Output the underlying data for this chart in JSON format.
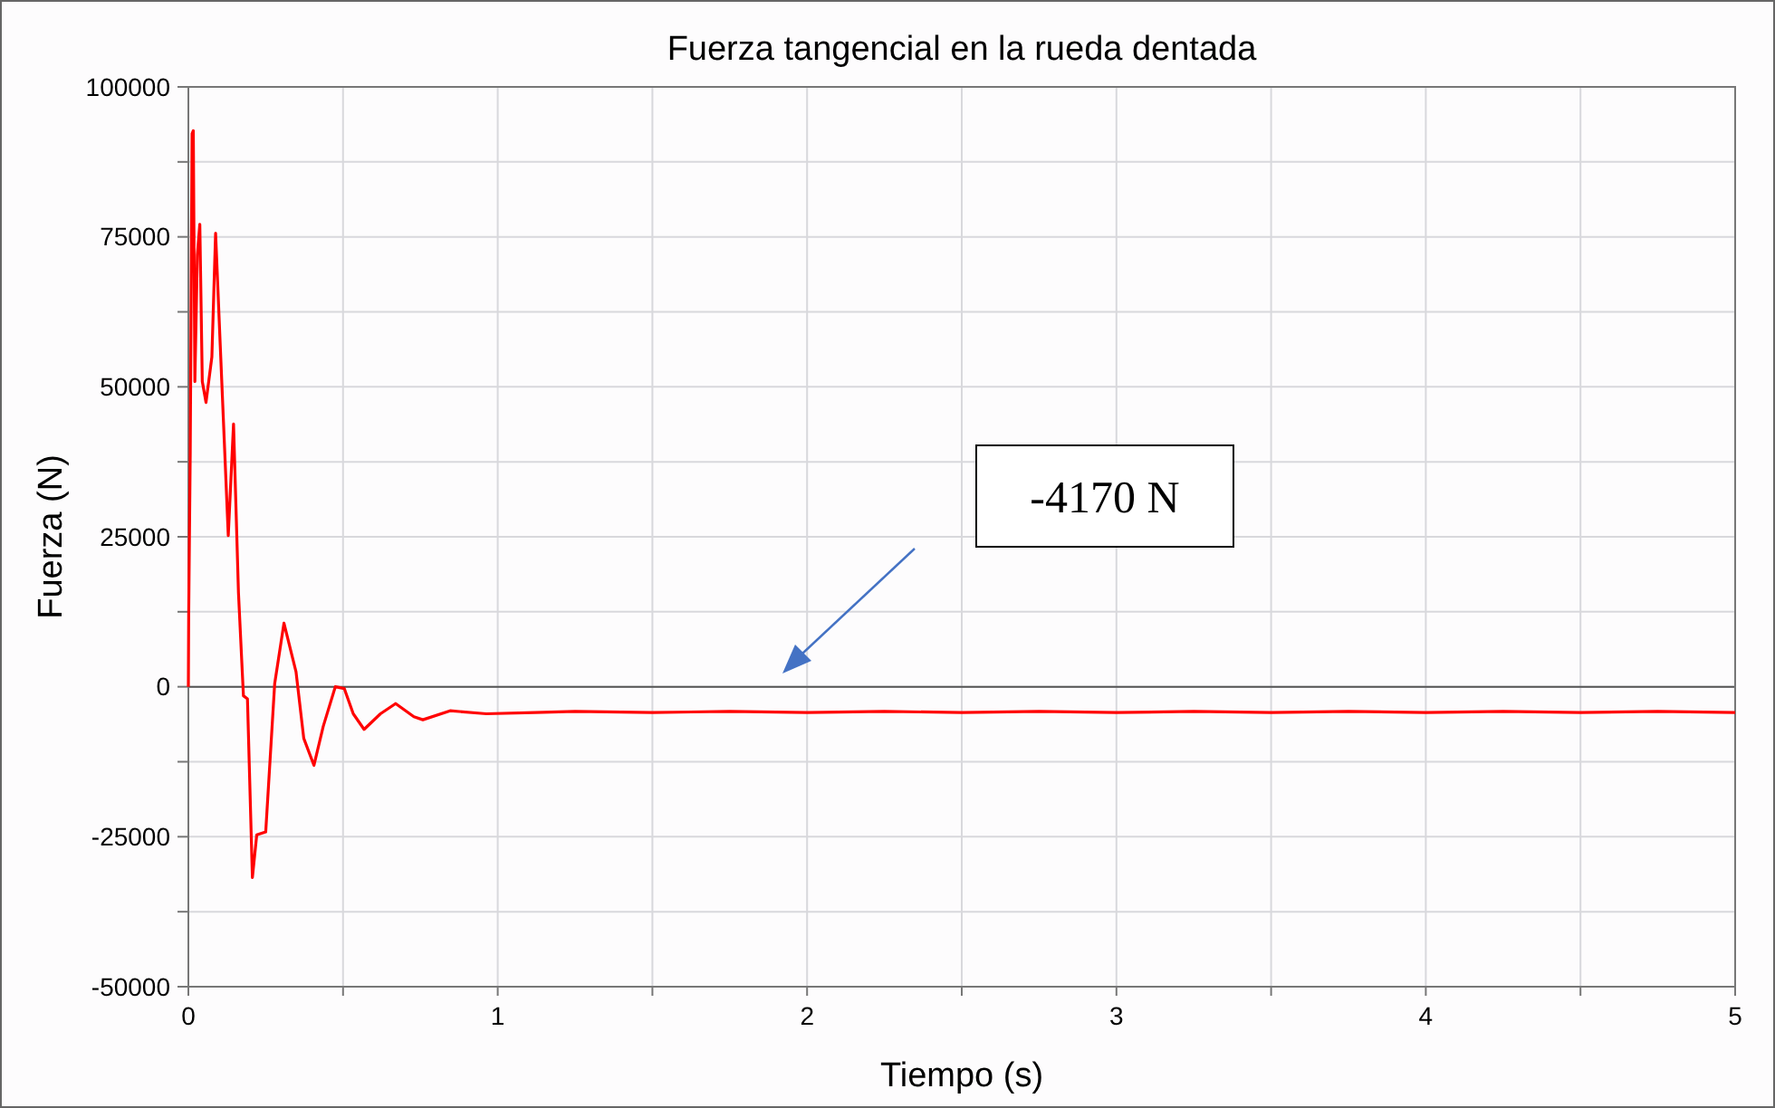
{
  "chart_data": {
    "type": "line",
    "title": "Fuerza tangencial en la rueda dentada",
    "xlabel": "Tiempo (s)",
    "ylabel": "Fuerza (N)",
    "xlim": [
      0,
      5
    ],
    "ylim": [
      -50000,
      100000
    ],
    "xticks": [
      0,
      {
        "value": 0.5,
        "label": null
      },
      1,
      {
        "value": 1.5,
        "label": null
      },
      2,
      {
        "value": 2.5,
        "label": null
      },
      3,
      {
        "value": 3.5,
        "label": null
      },
      4,
      {
        "value": 4.5,
        "label": null
      },
      5
    ],
    "yticks": [
      -50000,
      {
        "value": -37500,
        "label": null
      },
      -25000,
      {
        "value": -12500,
        "label": null
      },
      0,
      {
        "value": 12500,
        "label": null
      },
      25000,
      {
        "value": 37500,
        "label": null
      },
      50000,
      {
        "value": 62500,
        "label": null
      },
      75000,
      {
        "value": 87500,
        "label": null
      },
      100000
    ],
    "grid": true,
    "marker": "none",
    "line_style": "solid",
    "ref_lines": [
      {
        "axis": "y",
        "value": 0,
        "color": "#555555"
      }
    ],
    "annotations": [
      "-4170 N"
    ],
    "series": [
      {
        "color": "#ff0000",
        "x": [
          0,
          0.001,
          0.006,
          0.012,
          0.016,
          0.021,
          0.029,
          0.037,
          0.045,
          0.057,
          0.076,
          0.088,
          0.103,
          0.129,
          0.146,
          0.162,
          0.178,
          0.191,
          0.207,
          0.221,
          0.25,
          0.279,
          0.309,
          0.348,
          0.373,
          0.406,
          0.436,
          0.475,
          0.504,
          0.533,
          0.568,
          0.621,
          0.67,
          0.729,
          0.758,
          0.846,
          0.963,
          1.12,
          1.25,
          1.5,
          1.75,
          2,
          2.25,
          2.5,
          2.75,
          3,
          3.25,
          3.5,
          3.75,
          4,
          4.25,
          4.5,
          4.75,
          5
        ],
        "values": [
          0,
          11600,
          38800,
          92200,
          92700,
          50900,
          72000,
          77100,
          50900,
          47400,
          55000,
          75600,
          57000,
          25200,
          43800,
          15600,
          -1500,
          -2000,
          -31800,
          -24700,
          -24200,
          500,
          10600,
          2500,
          -8600,
          -13100,
          -6600,
          0,
          -300,
          -4500,
          -7100,
          -4500,
          -2800,
          -5000,
          -5500,
          -4000,
          -4500,
          -4300,
          -4100,
          -4300,
          -4100,
          -4300,
          -4100,
          -4300,
          -4100,
          -4300,
          -4100,
          -4300,
          -4100,
          -4300,
          -4100,
          -4300,
          -4100,
          -4300
        ]
      }
    ]
  }
}
